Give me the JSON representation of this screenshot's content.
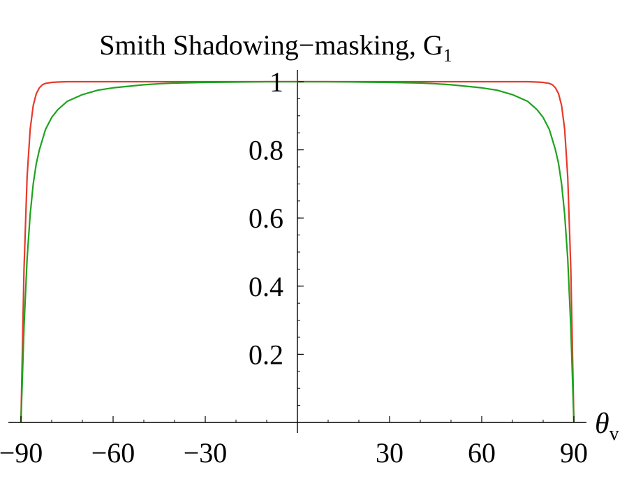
{
  "chart_data": {
    "type": "line",
    "title": "Smith Shadowing−masking, G",
    "title_subscript": "1",
    "xlabel": "θ",
    "xlabel_subscript": "v",
    "ylabel": "",
    "xlim": [
      -90,
      90
    ],
    "ylim": [
      0,
      1
    ],
    "x_ticks": [
      -90,
      -60,
      -30,
      30,
      60,
      90
    ],
    "x_tick_labels": [
      "−90",
      "−60",
      "−30",
      "30",
      "60",
      "90"
    ],
    "y_ticks": [
      0.2,
      0.4,
      0.6,
      0.8,
      1
    ],
    "y_tick_labels": [
      "0.2",
      "0.4",
      "0.6",
      "0.8",
      "1"
    ],
    "grid": false,
    "legend": "none",
    "series": [
      {
        "color": "#e8392a",
        "x": [
          -90,
          -89,
          -88,
          -87,
          -86,
          -85,
          -84,
          -83,
          -82,
          -80,
          -78,
          -75,
          -70,
          -60,
          -45,
          -30,
          0,
          30,
          45,
          60,
          70,
          75,
          78,
          80,
          82,
          83,
          84,
          85,
          86,
          87,
          88,
          89,
          90
        ],
        "values": [
          0.0,
          0.45,
          0.72,
          0.86,
          0.93,
          0.965,
          0.982,
          0.991,
          0.995,
          0.998,
          0.999,
          1.0,
          1.0,
          1.0,
          1.0,
          1.0,
          1.0,
          1.0,
          1.0,
          1.0,
          1.0,
          1.0,
          0.999,
          0.998,
          0.995,
          0.991,
          0.982,
          0.965,
          0.93,
          0.86,
          0.72,
          0.45,
          0.0
        ]
      },
      {
        "color": "#1fa31f",
        "x": [
          -90,
          -89,
          -88,
          -87,
          -86,
          -85,
          -84,
          -82,
          -80,
          -78,
          -75,
          -70,
          -65,
          -60,
          -50,
          -45,
          -40,
          -30,
          -20,
          -10,
          0,
          10,
          20,
          30,
          40,
          45,
          50,
          60,
          65,
          70,
          75,
          78,
          80,
          82,
          84,
          85,
          86,
          87,
          88,
          89,
          90
        ],
        "values": [
          0.0,
          0.28,
          0.48,
          0.61,
          0.7,
          0.76,
          0.8,
          0.86,
          0.895,
          0.918,
          0.942,
          0.962,
          0.975,
          0.982,
          0.991,
          0.994,
          0.996,
          0.998,
          0.999,
          1.0,
          1.0,
          1.0,
          0.999,
          0.998,
          0.996,
          0.994,
          0.991,
          0.982,
          0.975,
          0.962,
          0.942,
          0.918,
          0.895,
          0.86,
          0.8,
          0.76,
          0.7,
          0.61,
          0.48,
          0.28,
          0.0
        ]
      }
    ]
  }
}
